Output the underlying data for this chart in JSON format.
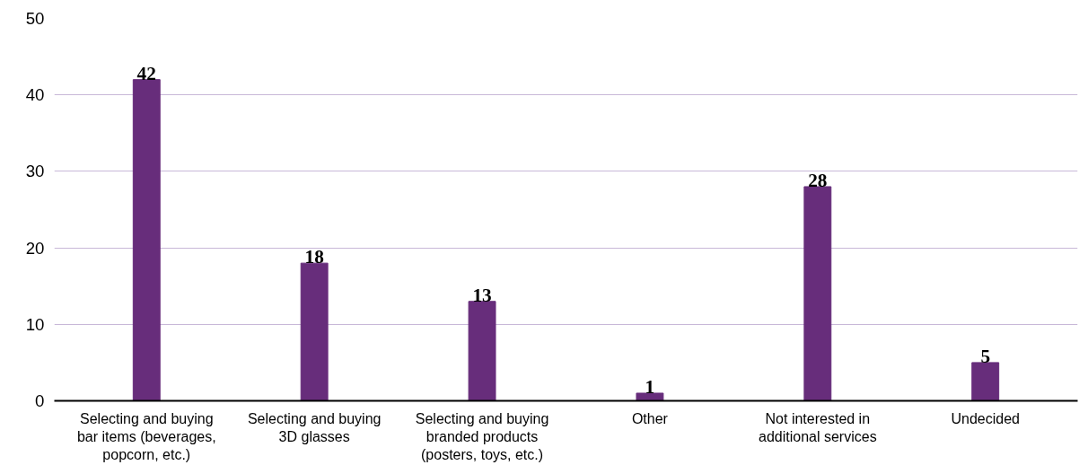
{
  "chart_data": {
    "type": "bar",
    "categories": [
      "Selecting and buying bar items (beverages, popcorn, etc.)",
      "Selecting and buying 3D glasses",
      "Selecting and buying branded products (posters, toys, etc.)",
      "Other",
      "Not interested in additional services",
      "Undecided"
    ],
    "values": [
      42,
      18,
      13,
      1,
      28,
      5
    ],
    "color": "#672d7b",
    "ylim": [
      0,
      50
    ],
    "yticks": [
      0,
      10,
      20,
      30,
      40,
      50
    ],
    "grid": "y",
    "data_labels": true
  }
}
